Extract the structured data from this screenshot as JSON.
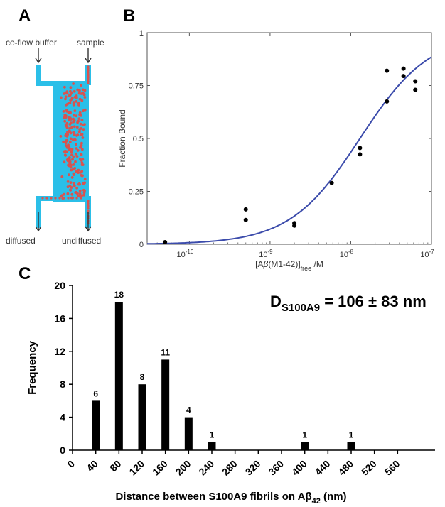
{
  "panels": {
    "a": "A",
    "b": "B",
    "c": "C"
  },
  "device": {
    "labels": {
      "coflow": "co-flow buffer",
      "sample": "sample",
      "diffused": "diffused",
      "undiffused": "undiffused"
    },
    "colors": {
      "channel": "#2bbfe8",
      "particle": "#d9534f",
      "arrow": "#333333"
    }
  },
  "chart_data": [
    {
      "type": "scatter",
      "panel": "B",
      "xscale": "log",
      "xlim": [
        3e-11,
        1e-07
      ],
      "ylim": [
        0,
        1
      ],
      "ylabel": "Fraction Bound",
      "xlabel": {
        "main": "[A",
        "beta": "β",
        "paren": "(M1-42)]",
        "sub": "free",
        "tail": " /M"
      },
      "yticks": [
        0,
        0.25,
        0.5,
        0.75,
        1
      ],
      "ytick_labels": [
        "0",
        "0.25",
        "0.5",
        "0.75",
        "1"
      ],
      "xticks": [
        {
          "base": "10",
          "exp": "-10",
          "value": 1e-10
        },
        {
          "base": "10",
          "exp": "-9",
          "value": 1e-09
        },
        {
          "base": "10",
          "exp": "-8",
          "value": 1e-08
        },
        {
          "base": "10",
          "exp": "-7",
          "value": 1e-07
        }
      ],
      "points": [
        {
          "x": 5e-11,
          "y": 0.01
        },
        {
          "x": 5e-10,
          "y": 0.165
        },
        {
          "x": 5e-10,
          "y": 0.115
        },
        {
          "x": 2e-09,
          "y": 0.1
        },
        {
          "x": 2e-09,
          "y": 0.088
        },
        {
          "x": 5.8e-09,
          "y": 0.29
        },
        {
          "x": 1.3e-08,
          "y": 0.455
        },
        {
          "x": 1.3e-08,
          "y": 0.425
        },
        {
          "x": 2.8e-08,
          "y": 0.82
        },
        {
          "x": 2.8e-08,
          "y": 0.675
        },
        {
          "x": 4.5e-08,
          "y": 0.83
        },
        {
          "x": 4.5e-08,
          "y": 0.795
        },
        {
          "x": 6.3e-08,
          "y": 0.77
        },
        {
          "x": 6.3e-08,
          "y": 0.73
        }
      ],
      "fit": {
        "kd": 1.3e-08,
        "hill": 1.0
      },
      "colors": {
        "fit": "#3b4bab",
        "points": "#000000"
      }
    },
    {
      "type": "bar",
      "panel": "C",
      "categories": [
        "40",
        "80",
        "120",
        "160",
        "200",
        "240",
        "400",
        "480"
      ],
      "values": [
        6,
        18,
        8,
        11,
        4,
        1,
        1,
        1
      ],
      "data_labels": [
        "6",
        "18",
        "8",
        "11",
        "4",
        "1",
        "1",
        "1"
      ],
      "xticks": [
        "0",
        "40",
        "80",
        "120",
        "160",
        "200",
        "240",
        "280",
        "320",
        "360",
        "400",
        "440",
        "480",
        "520",
        "560"
      ],
      "xlim": [
        0,
        600
      ],
      "ylim": [
        0,
        20
      ],
      "yticks": [
        "0",
        "4",
        "8",
        "12",
        "16",
        "20"
      ],
      "ylabel": "Frequency",
      "xlabel": {
        "main": "Distance between S100A9 fibrils on A",
        "beta": "β",
        "sub": "42",
        "tail": " (nm)"
      },
      "annotation": {
        "d": "D",
        "sub": "S100A9",
        "value": " = 106 ± 83 nm"
      },
      "colors": {
        "bars": "#000000"
      }
    }
  ]
}
